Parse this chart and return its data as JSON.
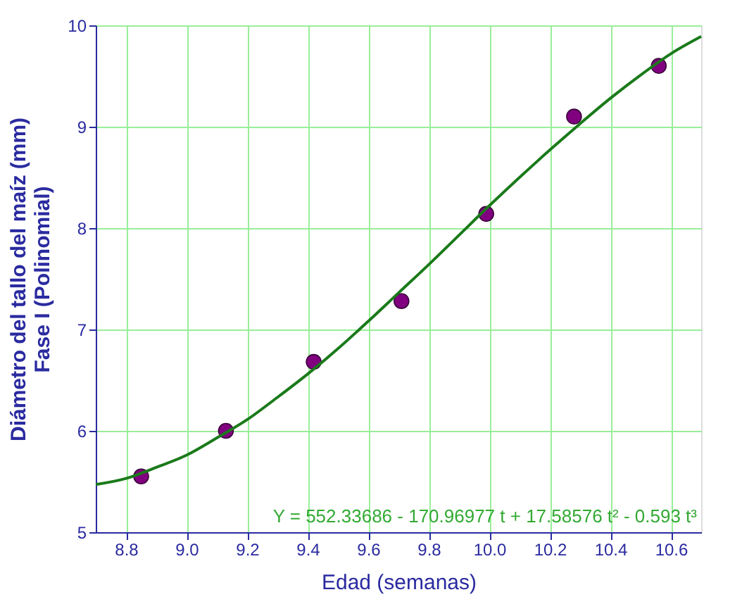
{
  "chart_data": {
    "type": "scatter",
    "xlabel": "Edad (semanas)",
    "ylabel": "Diámetro del tallo del maíz (mm)\nFase I (Polinomial)",
    "xlim": [
      8.7,
      10.7
    ],
    "xticks": [
      8.8,
      {
        "value": 9.0,
        "label": "9.0"
      },
      9.2,
      9.4,
      9.6,
      9.8,
      {
        "value": 10.0,
        "label": "10.0"
      },
      10.2,
      10.4,
      10.6
    ],
    "ylim": [
      5,
      10
    ],
    "yticks": [
      5,
      6,
      7,
      8,
      9,
      10
    ],
    "grid": true,
    "marker": "circle",
    "series": [
      {
        "color": "#800080",
        "x": [
          8.85,
          9.13,
          9.42,
          9.71,
          9.99,
          10.28,
          10.56
        ],
        "values": [
          5.55,
          6.0,
          6.68,
          7.28,
          8.14,
          9.1,
          9.6
        ]
      },
      {
        "type": "line",
        "marker": "none",
        "color": "#1a7a1a",
        "x": [
          8.7,
          8.8,
          8.9,
          9.0,
          9.1,
          9.2,
          9.3,
          9.4,
          9.5,
          9.6,
          9.7,
          9.8,
          9.9,
          10.0,
          10.1,
          10.2,
          10.3,
          10.4,
          10.5,
          10.6,
          10.7
        ],
        "values": [
          5.47,
          5.53,
          5.64,
          5.76,
          5.93,
          6.11,
          6.33,
          6.56,
          6.81,
          7.08,
          7.36,
          7.64,
          7.93,
          8.22,
          8.5,
          8.77,
          9.03,
          9.28,
          9.51,
          9.72,
          9.89
        ]
      }
    ],
    "annotations": [
      "Y = 552.33686 - 170.96977 t + 17.58576 t² - 0.593 t³"
    ]
  }
}
